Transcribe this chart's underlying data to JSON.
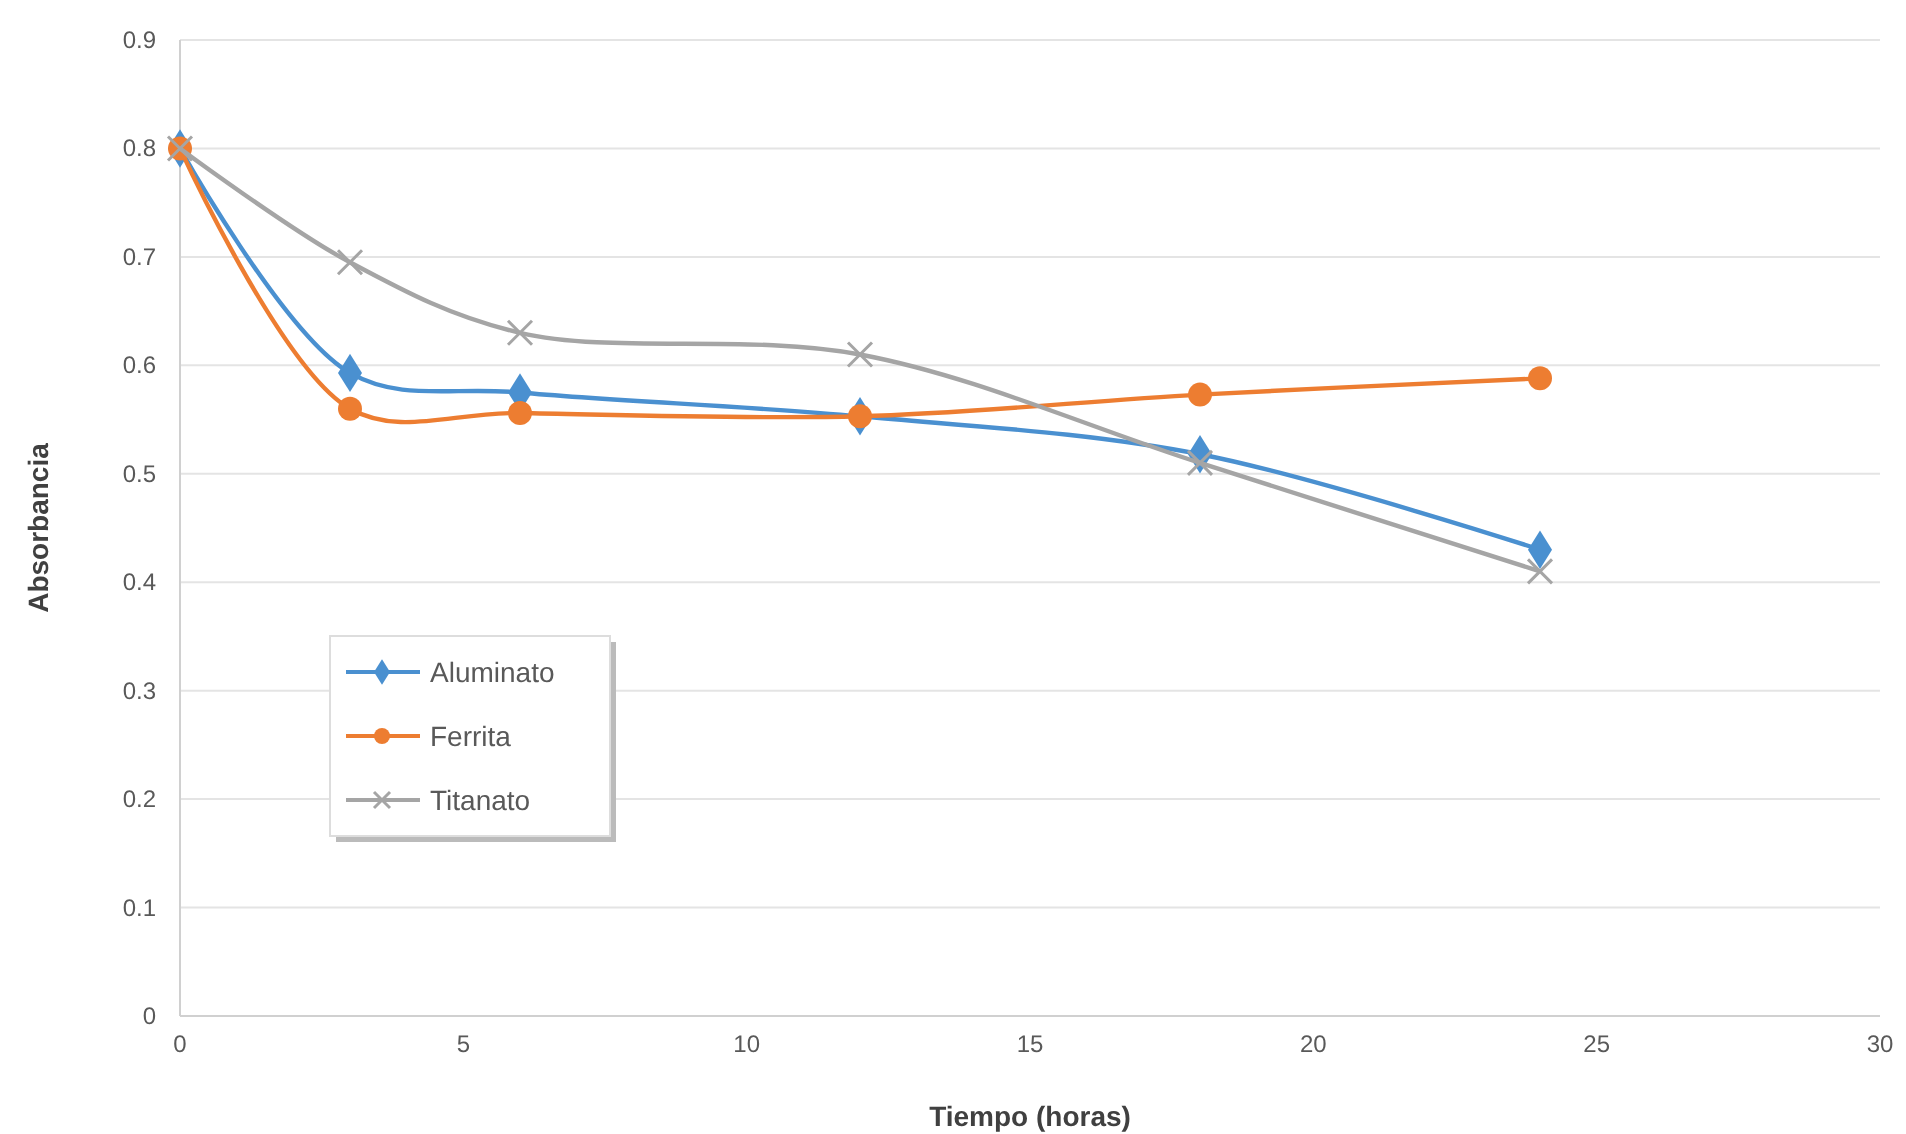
{
  "chart_data": {
    "type": "line",
    "xlabel": "Tiempo (horas)",
    "ylabel": "Absorbancia",
    "x": [
      0,
      3,
      6,
      12,
      18,
      24
    ],
    "series": [
      {
        "name": "Aluminato",
        "color": "#4a90d0",
        "marker": "diamond",
        "values": [
          0.8,
          0.593,
          0.575,
          0.553,
          0.518,
          0.43
        ]
      },
      {
        "name": "Ferrita",
        "color": "#ed7d31",
        "marker": "circle",
        "values": [
          0.8,
          0.56,
          0.556,
          0.553,
          0.573,
          0.588
        ]
      },
      {
        "name": "Titanato",
        "color": "#a5a5a5",
        "marker": "cross",
        "values": [
          0.8,
          0.695,
          0.63,
          0.61,
          0.51,
          0.41
        ]
      }
    ],
    "xlim": [
      0,
      30
    ],
    "xticks": [
      0,
      5,
      10,
      15,
      20,
      25,
      30
    ],
    "ylim": [
      0,
      0.9
    ],
    "yticks": [
      {
        "value": 0,
        "label": "0"
      },
      0.1,
      0.2,
      0.3,
      0.4,
      0.5,
      0.6,
      0.7,
      0.8,
      0.9
    ],
    "grid": "y",
    "legend": "bottom left"
  }
}
